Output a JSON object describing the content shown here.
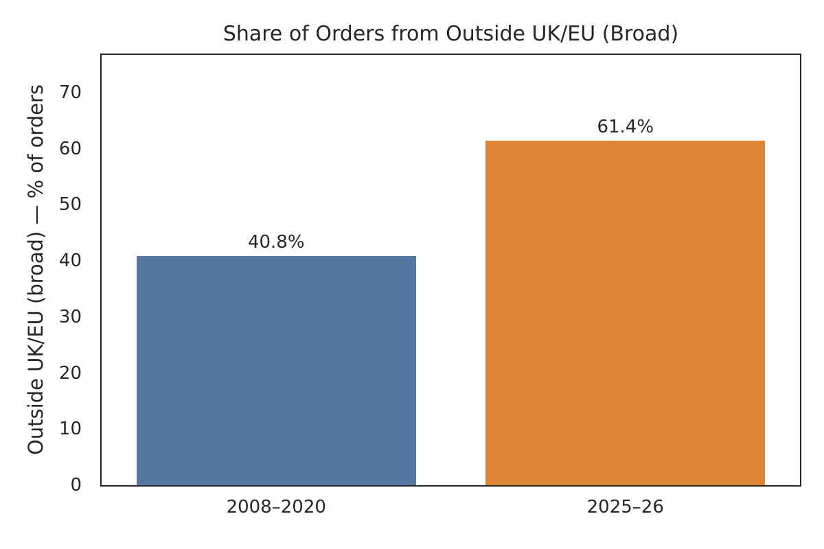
{
  "chart_data": {
    "type": "bar",
    "title": "Share of Orders from Outside UK/EU (Broad)",
    "ylabel": "Outside UK/EU (broad) — % of orders",
    "xlabel": "",
    "categories": [
      "2008–2020",
      "2025–26"
    ],
    "values": [
      40.8,
      61.4
    ],
    "bar_labels": [
      "40.8%",
      "61.4%"
    ],
    "bar_colors": [
      "#5677A0",
      "#DD8435"
    ],
    "yticks": [
      0,
      10,
      20,
      30,
      40,
      50,
      60,
      70
    ],
    "ylim": [
      0,
      76.7
    ],
    "bar_width_fraction": 0.8,
    "grid": false,
    "legend": "none",
    "background_color": "#FFFFFF",
    "text_color": "#262626",
    "spine_color": "#262626"
  }
}
